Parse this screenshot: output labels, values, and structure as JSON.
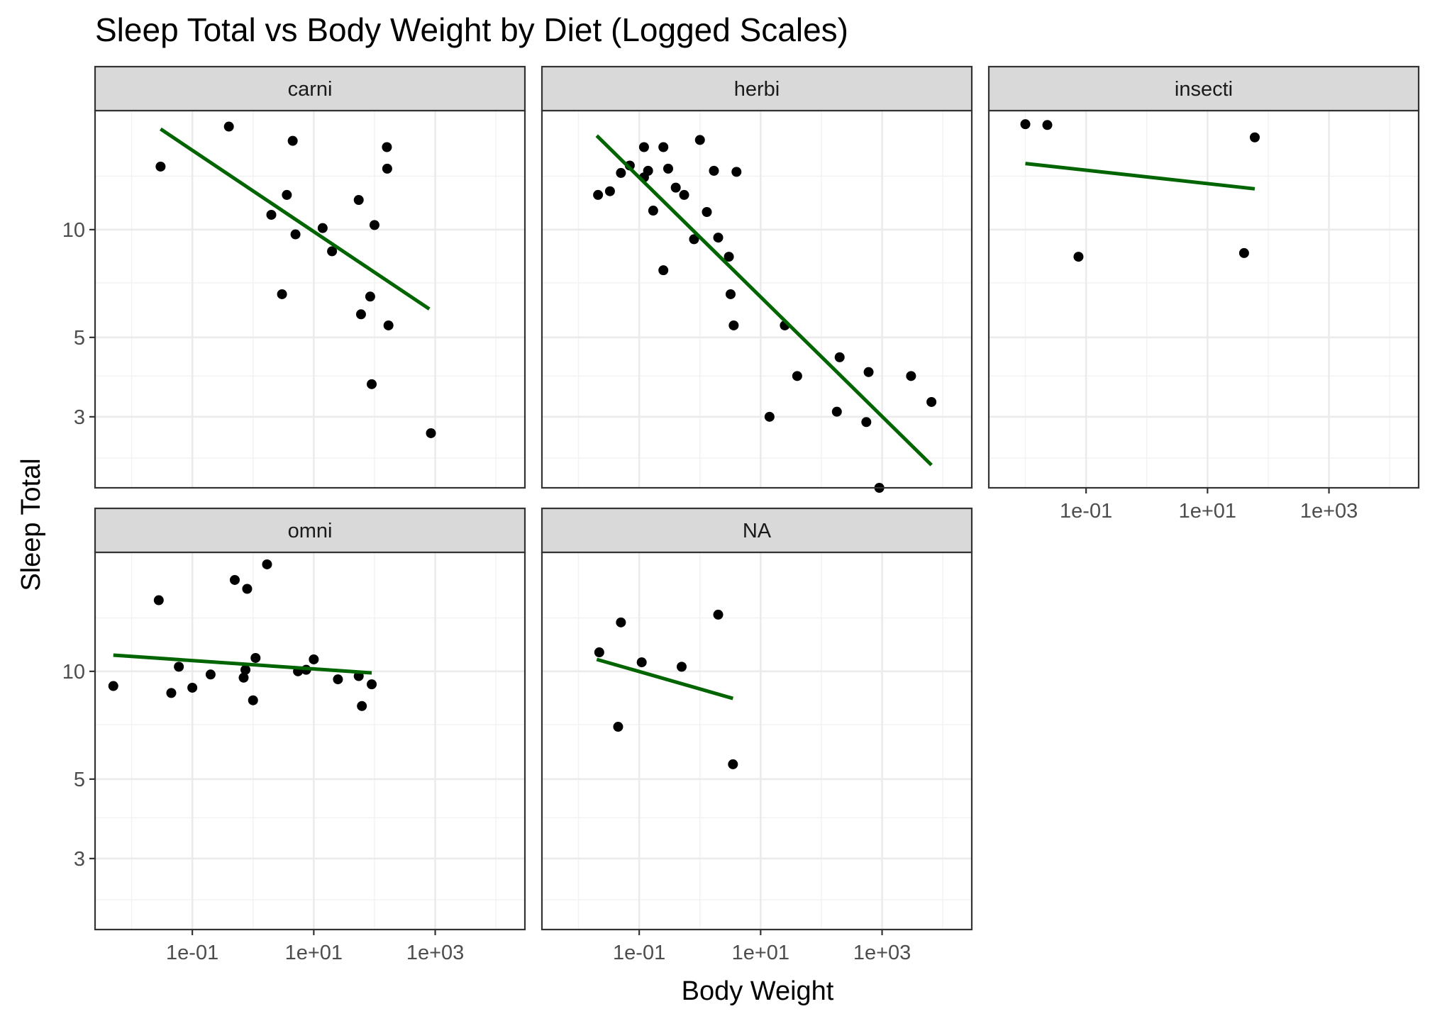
{
  "chart_data": {
    "type": "scatter",
    "title": "Sleep Total vs Body Weight by Diet (Logged Scales)",
    "xlabel": "Body Weight",
    "ylabel": "Sleep Total",
    "x_scale": "log10",
    "y_scale": "log10",
    "xlim": [
      0.0025,
      30000
    ],
    "ylim": [
      1.9,
      21.5
    ],
    "x_ticks": [
      0.1,
      10,
      1000
    ],
    "x_tick_labels": [
      "1e-01",
      "1e+01",
      "1e+03"
    ],
    "y_ticks": [
      3,
      5,
      10
    ],
    "y_tick_labels": [
      "3",
      "5",
      "10"
    ],
    "grid": true,
    "point_color": "#000000",
    "fit_color": "#006400",
    "strip_color": "#d9d9d9",
    "facets": [
      {
        "label": "carni",
        "points": [
          [
            0.03,
            15.0
          ],
          [
            0.4,
            19.4
          ],
          [
            2.0,
            11.0
          ],
          [
            3.0,
            6.6
          ],
          [
            3.6,
            12.5
          ],
          [
            4.5,
            17.7
          ],
          [
            5.0,
            9.7
          ],
          [
            14.0,
            10.1
          ],
          [
            20.0,
            8.7
          ],
          [
            55.0,
            12.1
          ],
          [
            60.0,
            5.8
          ],
          [
            85.0,
            6.5
          ],
          [
            100.0,
            10.3
          ],
          [
            90.0,
            3.7
          ],
          [
            160.0,
            17.0
          ],
          [
            162.0,
            14.8
          ],
          [
            170.0,
            5.4
          ],
          [
            850.0,
            2.7
          ]
        ],
        "fit": [
          [
            0.03,
            19.1
          ],
          [
            800.0,
            6.0
          ]
        ]
      },
      {
        "label": "herbi",
        "points": [
          [
            0.021,
            12.5
          ],
          [
            0.033,
            12.8
          ],
          [
            0.05,
            14.4
          ],
          [
            0.07,
            15.1
          ],
          [
            0.12,
            17.0
          ],
          [
            0.12,
            14.0
          ],
          [
            0.14,
            14.6
          ],
          [
            0.17,
            11.3
          ],
          [
            0.25,
            17.0
          ],
          [
            0.25,
            7.7
          ],
          [
            0.3,
            14.8
          ],
          [
            0.4,
            13.1
          ],
          [
            0.55,
            12.5
          ],
          [
            0.8,
            9.4
          ],
          [
            1.0,
            17.8
          ],
          [
            1.3,
            11.2
          ],
          [
            1.7,
            14.6
          ],
          [
            2.0,
            9.5
          ],
          [
            3.0,
            8.4
          ],
          [
            3.2,
            6.6
          ],
          [
            3.6,
            5.4
          ],
          [
            4.0,
            14.5
          ],
          [
            14.0,
            3.0
          ],
          [
            25.0,
            5.4
          ],
          [
            40.0,
            3.9
          ],
          [
            180.0,
            3.1
          ],
          [
            200.0,
            4.4
          ],
          [
            550.0,
            2.9
          ],
          [
            600.0,
            4.0
          ],
          [
            900.0,
            1.9
          ],
          [
            3000.0,
            3.9
          ],
          [
            6500.0,
            3.3
          ]
        ],
        "fit": [
          [
            0.02,
            18.3
          ],
          [
            6500.0,
            2.2
          ]
        ]
      },
      {
        "label": "insecti",
        "points": [
          [
            0.01,
            19.7
          ],
          [
            0.023,
            19.6
          ],
          [
            0.075,
            8.4
          ],
          [
            40.0,
            8.6
          ],
          [
            60.0,
            18.1
          ]
        ],
        "fit": [
          [
            0.01,
            15.3
          ],
          [
            60.0,
            13.0
          ]
        ]
      },
      {
        "label": "omni",
        "points": [
          [
            0.005,
            9.1
          ],
          [
            0.028,
            15.8
          ],
          [
            0.045,
            8.7
          ],
          [
            0.06,
            10.3
          ],
          [
            0.1,
            9.0
          ],
          [
            0.2,
            9.8
          ],
          [
            0.5,
            18.0
          ],
          [
            0.7,
            9.6
          ],
          [
            0.75,
            10.1
          ],
          [
            0.8,
            17.0
          ],
          [
            1.0,
            8.3
          ],
          [
            1.1,
            10.9
          ],
          [
            1.7,
            19.9
          ],
          [
            5.5,
            10.0
          ],
          [
            7.5,
            10.1
          ],
          [
            10.0,
            10.8
          ],
          [
            25.0,
            9.5
          ],
          [
            55.0,
            9.7
          ],
          [
            62.0,
            8.0
          ],
          [
            90.0,
            9.2
          ]
        ],
        "fit": [
          [
            0.005,
            11.1
          ],
          [
            90.0,
            9.9
          ]
        ]
      },
      {
        "label": "NA",
        "points": [
          [
            0.022,
            11.3
          ],
          [
            0.05,
            13.7
          ],
          [
            0.045,
            7.0
          ],
          [
            0.11,
            10.6
          ],
          [
            0.5,
            10.3
          ],
          [
            2.0,
            14.4
          ],
          [
            3.5,
            5.5
          ]
        ],
        "fit": [
          [
            0.02,
            10.8
          ],
          [
            3.5,
            8.4
          ]
        ]
      }
    ]
  }
}
